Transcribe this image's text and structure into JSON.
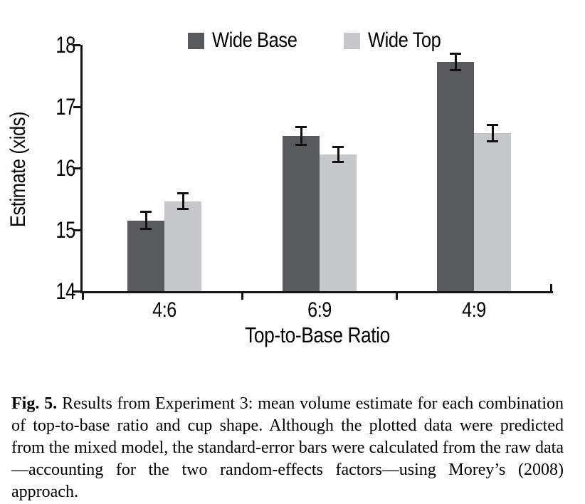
{
  "chart_data": {
    "type": "bar",
    "title": "",
    "categories": [
      "4:6",
      "6:9",
      "4:9"
    ],
    "series": [
      {
        "name": "Wide Base",
        "color": "#58595b",
        "values": [
          15.15,
          16.52,
          17.72
        ],
        "errors": [
          0.14,
          0.15,
          0.14
        ]
      },
      {
        "name": "Wide Top",
        "color": "#c6c7c9",
        "values": [
          15.46,
          16.22,
          16.57
        ],
        "errors": [
          0.13,
          0.13,
          0.14
        ]
      }
    ],
    "xlabel": "Top-to-Base Ratio",
    "ylabel": "Estimate (xids)",
    "ylim": [
      14,
      18
    ],
    "yticks": [
      14,
      15,
      16,
      17,
      18
    ],
    "legend_position": "top",
    "grid": false,
    "axis_color": "#161616",
    "error_bar_color": "#111111"
  },
  "caption": {
    "label": "Fig. 5.",
    "text": "Results from Experiment 3: mean volume estimate for each combination of top-to-base ratio and cup shape. Although the plotted data were predicted from the mixed model, the standard-error bars were calculated from the raw data—accounting for the two random-effects factors—using Morey’s (2008) approach."
  }
}
